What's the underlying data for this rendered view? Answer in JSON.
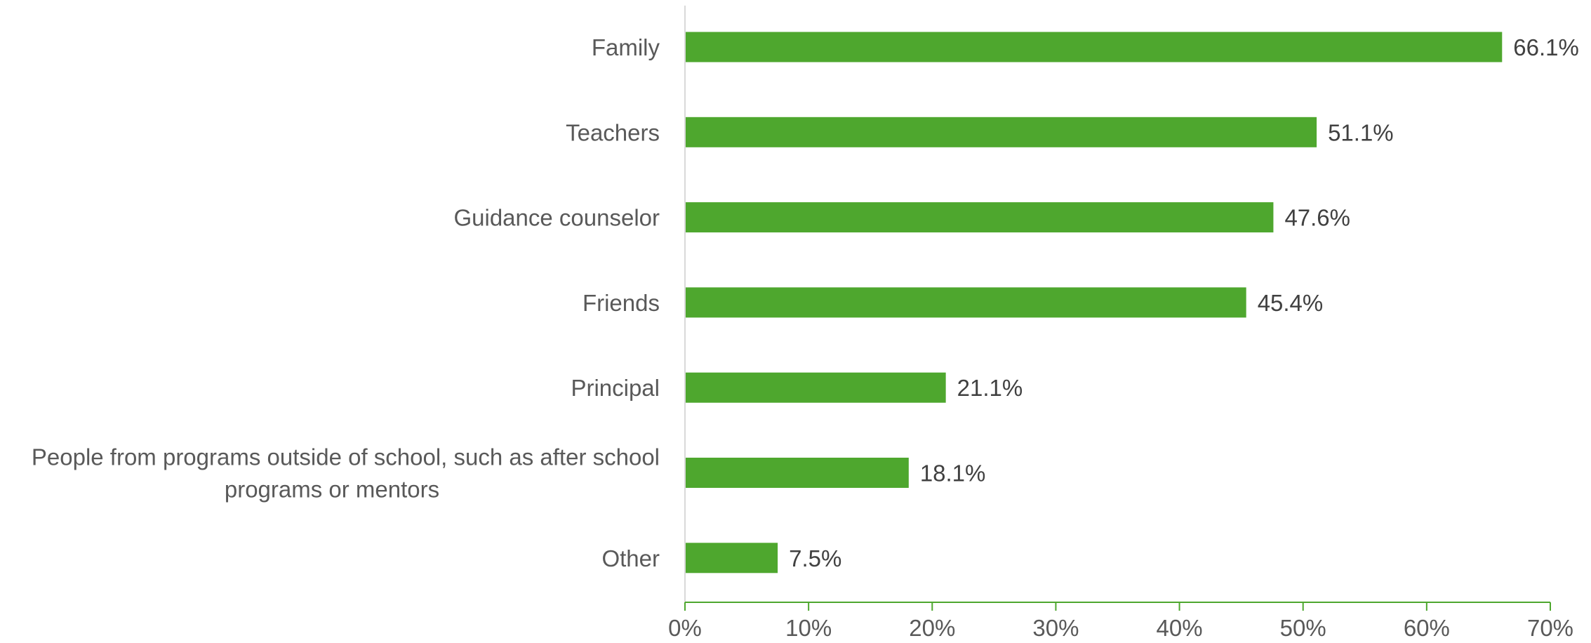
{
  "colors": {
    "bar": "#4EA72E",
    "axis": "#4EA72E",
    "category_text": "#595959",
    "value_text": "#404040",
    "value_axis_line": "#D9D9D9"
  },
  "chart_data": {
    "type": "bar",
    "orientation": "horizontal",
    "categories": [
      [
        "Family"
      ],
      [
        "Teachers"
      ],
      [
        "Guidance counselor"
      ],
      [
        "Friends"
      ],
      [
        "Principal"
      ],
      [
        "People from programs outside of school, such as after school",
        "programs or mentors"
      ],
      [
        "Other"
      ]
    ],
    "values": [
      66.1,
      51.1,
      47.6,
      45.4,
      21.1,
      18.1,
      7.5
    ],
    "value_labels": [
      "66.1%",
      "51.1%",
      "47.6%",
      "45.4%",
      "21.1%",
      "18.1%",
      "7.5%"
    ],
    "xlim": [
      0,
      70
    ],
    "xticks": [
      0,
      10,
      20,
      30,
      40,
      50,
      60,
      70
    ],
    "xtick_labels": [
      "0%",
      "10%",
      "20%",
      "30%",
      "40%",
      "50%",
      "60%",
      "70%"
    ],
    "title": "",
    "xlabel": "",
    "ylabel": "",
    "grid": false,
    "legend": "none"
  }
}
